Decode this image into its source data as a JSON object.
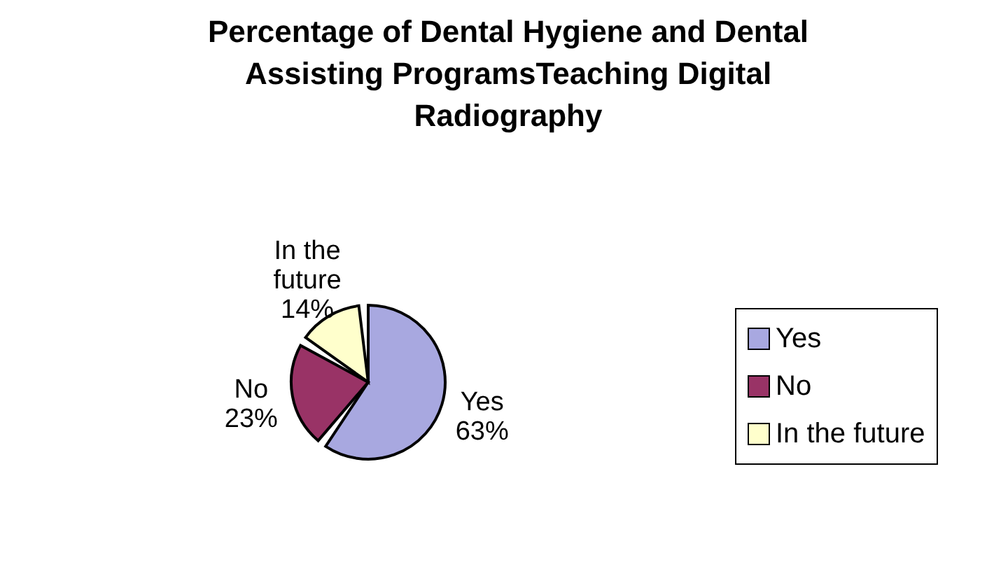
{
  "chart_data": {
    "type": "pie",
    "title": "Percentage of Dental Hygiene and Dental Assisting ProgramsTeaching Digital Radiography",
    "categories": [
      "Yes",
      "No",
      "In the future"
    ],
    "values": [
      63,
      23,
      14
    ],
    "value_labels": [
      "63%",
      "23%",
      "14%"
    ],
    "colors": [
      "#a8a8e0",
      "#993366",
      "#ffffcc"
    ],
    "legend": "right"
  }
}
